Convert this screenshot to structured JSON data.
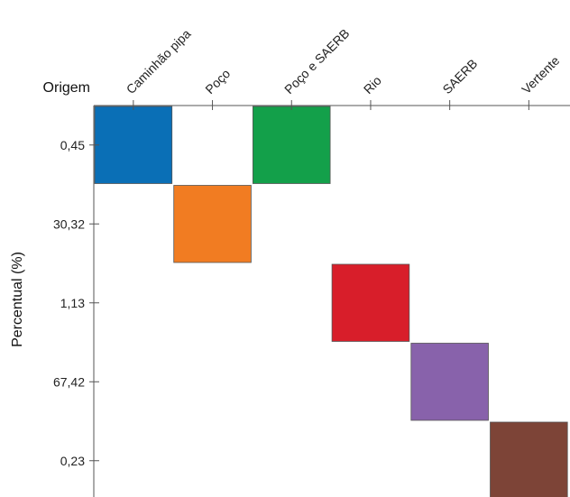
{
  "chart_data": {
    "type": "heatmap",
    "x_axis_title": "Origem",
    "y_axis_title": "Percentual (%)",
    "x_categories": [
      "Caminhão pipa",
      "Poço",
      "Poço e SAERB",
      "Rio",
      "SAERB",
      "Vertente"
    ],
    "y_categories": [
      "0,45",
      "30,32",
      "1,13",
      "67,42",
      "0,23"
    ],
    "cells": [
      {
        "x": "Caminhão pipa",
        "y": "0,45",
        "color": "#0a6fb6"
      },
      {
        "x": "Poço e SAERB",
        "y": "0,45",
        "color": "#13a04a"
      },
      {
        "x": "Poço",
        "y": "30,32",
        "color": "#f17c22"
      },
      {
        "x": "Rio",
        "y": "1,13",
        "color": "#d81e2a"
      },
      {
        "x": "SAERB",
        "y": "67,42",
        "color": "#8862ab"
      },
      {
        "x": "Vertente",
        "y": "0,23",
        "color": "#7d4437"
      }
    ]
  }
}
